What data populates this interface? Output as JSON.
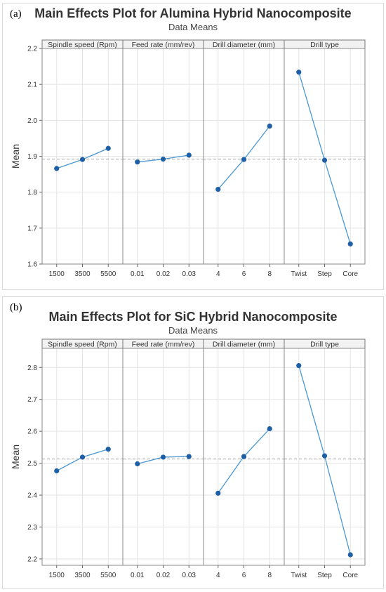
{
  "figures": [
    {
      "panel_label": "(a)",
      "title": "Main Effects Plot for Alumina Hybrid Nanocomposite",
      "subtitle": "Data Means"
    },
    {
      "panel_label": "(b)",
      "title": "Main Effects Plot for SiC Hybrid Nanocomposite",
      "subtitle": "Data Means"
    }
  ],
  "colors": {
    "line": "#4a97d1",
    "marker": "#1f5fa6",
    "grid": "#e3e3e3",
    "reference_line": "#a8a8a8",
    "header_bg": "#f2f2f2"
  },
  "chart_data": [
    {
      "type": "line",
      "title": "Main Effects Plot for Alumina Hybrid Nanocomposite",
      "subtitle": "Data Means",
      "ylabel": "Mean",
      "ylim": [
        1.6,
        2.2
      ],
      "yticks": [
        1.6,
        1.7,
        1.8,
        1.9,
        2.0,
        2.1,
        2.2
      ],
      "yticklabels": [
        "1.6",
        "1.7",
        "1.8",
        "1.9",
        "2.0",
        "2.1",
        "2.2"
      ],
      "reference_mean": 1.892,
      "grid": true,
      "factors": [
        {
          "name": "Spindle speed (Rpm)",
          "levels": [
            "1500",
            "3500",
            "5500"
          ],
          "values": [
            1.866,
            1.891,
            1.922
          ]
        },
        {
          "name": "Feed rate (mm/rev)",
          "levels": [
            "0.01",
            "0.02",
            "0.03"
          ],
          "values": [
            1.884,
            1.892,
            1.903
          ]
        },
        {
          "name": "Drill diameter (mm)",
          "levels": [
            "4",
            "6",
            "8"
          ],
          "values": [
            1.808,
            1.891,
            1.984
          ]
        },
        {
          "name": "Drill type",
          "levels": [
            "Twist",
            "Step",
            "Core"
          ],
          "values": [
            2.134,
            1.889,
            1.656
          ]
        }
      ]
    },
    {
      "type": "line",
      "title": "Main Effects Plot for SiC Hybrid Nanocomposite",
      "subtitle": "Data Means",
      "ylabel": "Mean",
      "ylim": [
        2.18,
        2.86
      ],
      "yticks": [
        2.2,
        2.3,
        2.4,
        2.5,
        2.6,
        2.7,
        2.8
      ],
      "yticklabels": [
        "2.2",
        "2.3",
        "2.4",
        "2.5",
        "2.6",
        "2.7",
        "2.8"
      ],
      "reference_mean": 2.513,
      "grid": true,
      "factors": [
        {
          "name": "Spindle speed (Rpm)",
          "levels": [
            "1500",
            "3500",
            "5500"
          ],
          "values": [
            2.476,
            2.519,
            2.544
          ]
        },
        {
          "name": "Feed rate (mm/rev)",
          "levels": [
            "0.01",
            "0.02",
            "0.03"
          ],
          "values": [
            2.498,
            2.519,
            2.521
          ]
        },
        {
          "name": "Drill diameter (mm)",
          "levels": [
            "4",
            "6",
            "8"
          ],
          "values": [
            2.406,
            2.521,
            2.608
          ]
        },
        {
          "name": "Drill type",
          "levels": [
            "Twist",
            "Step",
            "Core"
          ],
          "values": [
            2.806,
            2.523,
            2.213
          ]
        }
      ]
    }
  ]
}
